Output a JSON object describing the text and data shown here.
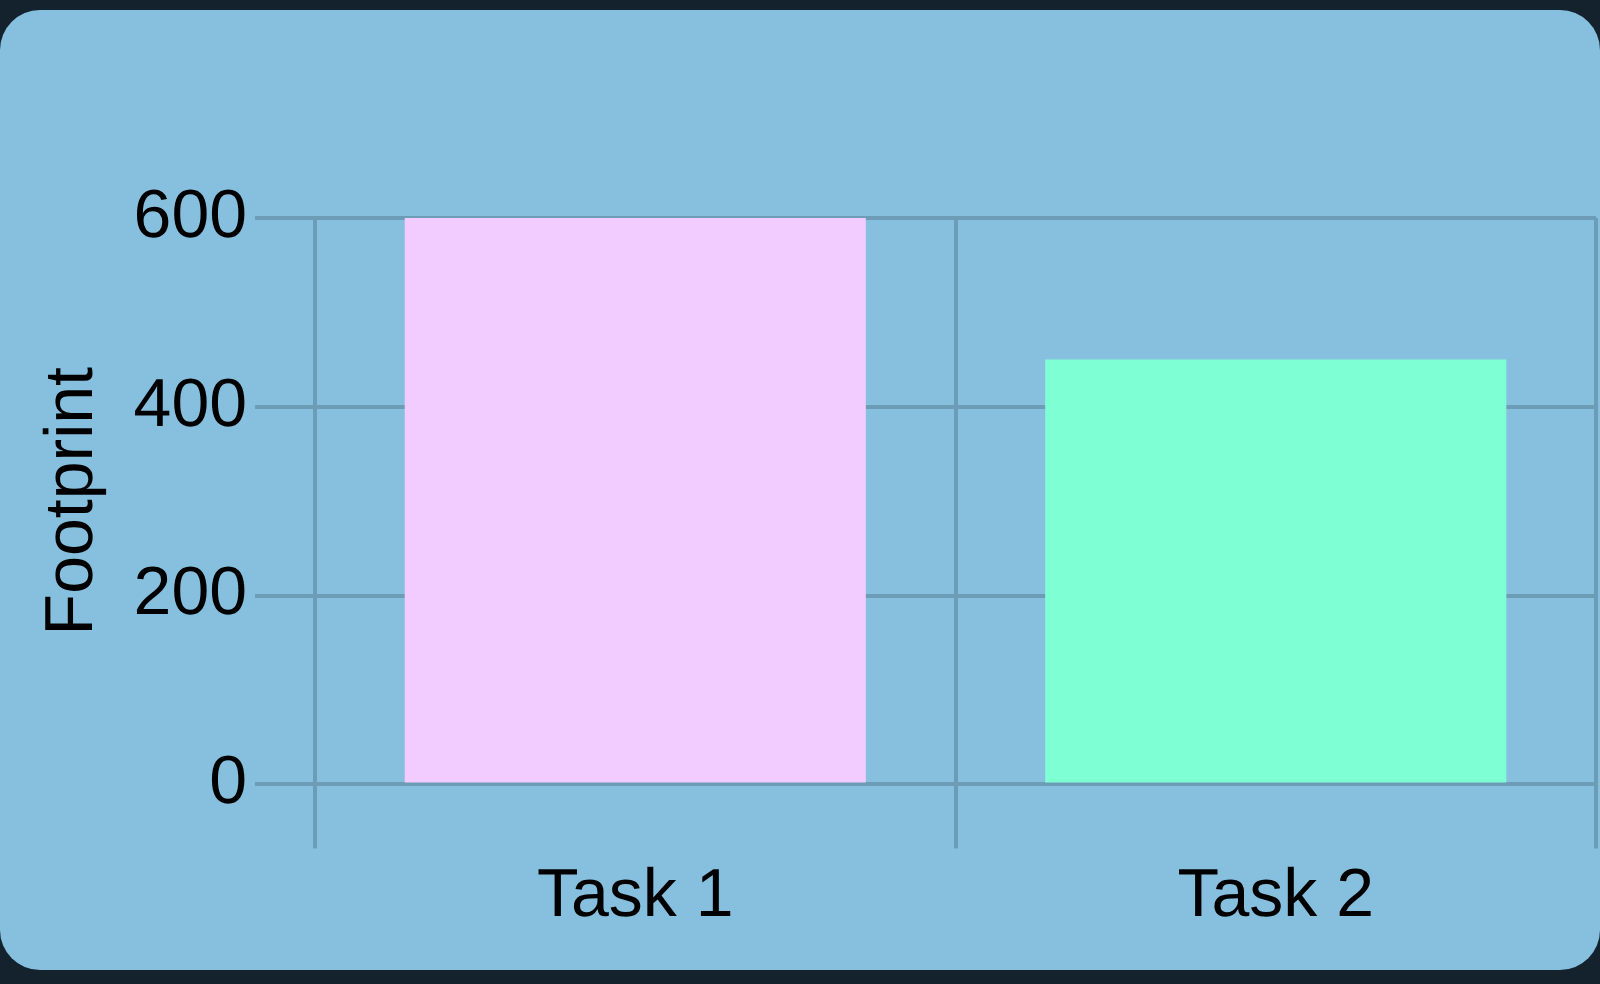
{
  "chart_data": {
    "type": "bar",
    "ylabel": "Footprint",
    "categories": [
      "Task 1",
      "Task 2"
    ],
    "values": [
      600,
      450
    ],
    "colors": [
      "#f2cbff",
      "#7fffd4"
    ],
    "ylim": [
      0,
      600
    ],
    "yticks": [
      0,
      200,
      400,
      600
    ],
    "grid": true,
    "legend": false
  }
}
